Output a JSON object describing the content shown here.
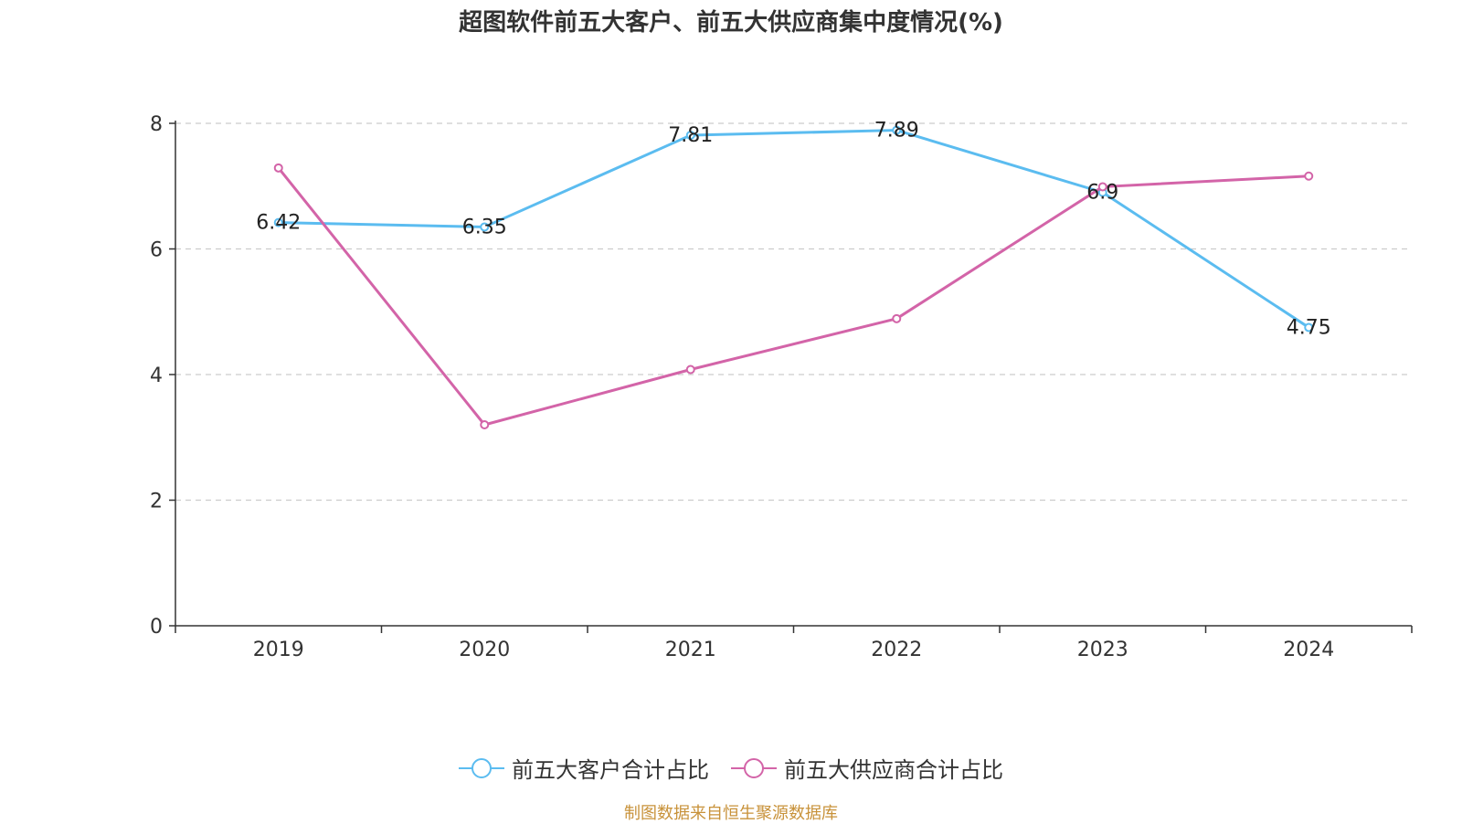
{
  "title": "超图软件前五大客户、前五大供应商集中度情况(%)",
  "source": "制图数据来自恒生聚源数据库",
  "chart_data": {
    "type": "line",
    "title": "超图软件前五大客户、前五大供应商集中度情况(%)",
    "categories": [
      "2019",
      "2020",
      "2021",
      "2022",
      "2023",
      "2024"
    ],
    "ylim": [
      0,
      8
    ],
    "yticks": [
      "0",
      "2",
      "4",
      "6",
      "8"
    ],
    "grid": "horizontal-dashed",
    "legend_position": "bottom",
    "series": [
      {
        "name": "前五大客户合计占比",
        "color": "#5bbcf0",
        "values": [
          6.42,
          6.35,
          7.81,
          7.89,
          6.9,
          4.75
        ],
        "labels": [
          "6.42",
          "6.35",
          "7.81",
          "7.89",
          "6.9",
          "4.75"
        ]
      },
      {
        "name": "前五大供应商合计占比",
        "color": "#d364a8",
        "values": [
          7.29,
          3.2,
          4.08,
          4.89,
          6.99,
          7.16
        ]
      }
    ]
  }
}
